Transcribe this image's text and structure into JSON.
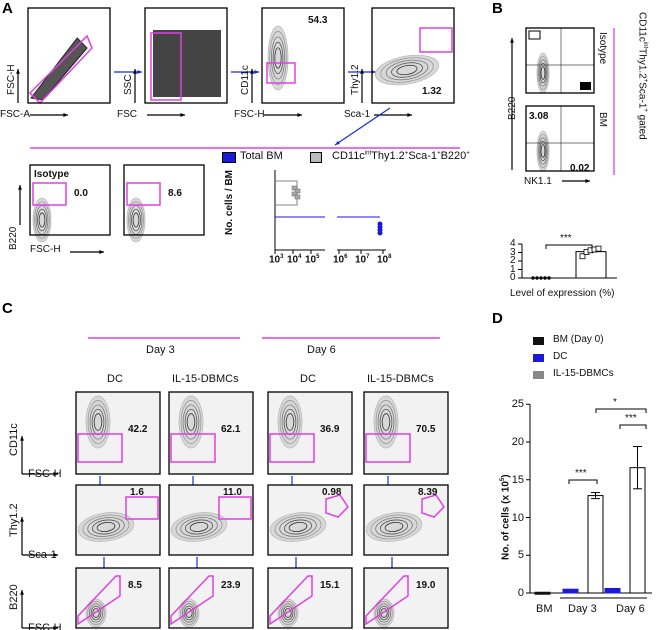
{
  "panels": {
    "A": "A",
    "B": "B",
    "C": "C",
    "D": "D"
  },
  "colors": {
    "gate": "#e040e0",
    "arrow": "#1a2bd6",
    "dc": "#1a1ad6",
    "total_bm": "#1a1ad6",
    "gray": "#999999"
  },
  "panelA": {
    "top_plots": [
      {
        "y": "FSC-H",
        "x": "FSC-A",
        "value": ""
      },
      {
        "y": "SSC",
        "x": "FSC",
        "value": ""
      },
      {
        "y": "CD11c",
        "x": "FSC-H",
        "value": "54.3"
      },
      {
        "y": "Thy1.2",
        "x": "Sca-1",
        "value": "1.32"
      }
    ],
    "bottom_plots": [
      {
        "title": "Isotype",
        "value": "0.0"
      },
      {
        "title": "",
        "value": "8.6"
      }
    ],
    "bottom_ylabel": "B220",
    "bottom_xlabel": "FSC-H",
    "legend": [
      "Total BM",
      "CD11cᴵⁿᵗThy1.2⁺Sca-1⁺B220⁺"
    ],
    "legend_parts": {
      "l1": "Total BM",
      "l2a": "CD11c",
      "l2b": "int",
      "l2c": "Thy1.2",
      "l2d": "+",
      "l2e": "Sca-1",
      "l2f": "+",
      "l2g": "B220",
      "l2h": "+"
    },
    "ylabel": "No. cells / BM",
    "xticks": [
      "10",
      "3",
      "10",
      "4",
      "10",
      "5",
      "10",
      "6",
      "10",
      "7",
      "10",
      "8"
    ]
  },
  "panelB": {
    "plots": [
      {
        "row": "Isotype",
        "tl": "",
        "br": ""
      },
      {
        "row": "BM",
        "tl": "3.08",
        "br": "0.02"
      }
    ],
    "ylabel": "B220",
    "xlabel": "NK1.1",
    "gate_a": "CD11c",
    "gate_b": "int",
    "gate_c": "Thy1.2",
    "gate_d": "+",
    "gate_e": "Sca-1",
    "gate_f": "+",
    "gate_g": " gated",
    "sig": "***"
  },
  "panelC": {
    "days": [
      "Day 3",
      "Day 6"
    ],
    "groups": [
      "DC",
      "IL-15-DBMCs",
      "DC",
      "IL-15-DBMCs"
    ],
    "row_labels": [
      [
        "CD11c",
        "FSC-H"
      ],
      [
        "Thy1.2",
        "Sca-1"
      ],
      [
        "B220",
        "FSC-H"
      ]
    ],
    "values": [
      [
        "42.2",
        "62.1",
        "36.9",
        "70.5"
      ],
      [
        "1.6",
        "11.0",
        "0.98",
        "8.39"
      ],
      [
        "8.5",
        "23.9",
        "15.1",
        "19.0"
      ]
    ]
  },
  "chart_data": [
    {
      "panel": "B",
      "type": "bar",
      "xlabel": "Level of expression (%)",
      "ylim": [
        0,
        4
      ],
      "yticks": [
        "0",
        "1",
        "2",
        "3",
        "4"
      ],
      "categories": [
        "",
        ""
      ],
      "values": [
        0,
        3.1
      ],
      "points": [
        [
          0,
          0,
          0,
          0,
          0
        ],
        [
          2.5,
          3.0,
          3.2,
          3.3,
          3.4
        ]
      ],
      "significance": "***"
    },
    {
      "panel": "A",
      "type": "scatter",
      "ylabel": "No. cells / BM",
      "xscale": "log",
      "xlim": [
        "10^3",
        "10^8"
      ],
      "series": [
        {
          "name": "Total BM",
          "values": [
            60000000.0
          ]
        },
        {
          "name": "CD11c int Thy1.2+Sca-1+B220+",
          "values": [
            10000.0
          ]
        }
      ]
    },
    {
      "panel": "D",
      "type": "bar",
      "ylabel": "No. of cells (x 10⁵)",
      "ylim": [
        0,
        25
      ],
      "yticks": [
        "0",
        "5",
        "10",
        "15",
        "20",
        "25"
      ],
      "categories": [
        "BM",
        "Day 3",
        "Day 6"
      ],
      "series": [
        {
          "name": "BM (Day 0)",
          "values": [
            0.1,
            null,
            null
          ]
        },
        {
          "name": "DC",
          "values": [
            null,
            0.5,
            0.6
          ]
        },
        {
          "name": "IL-15-DBMCs",
          "values": [
            null,
            12.9,
            16.6
          ]
        }
      ],
      "errors": {
        "IL-15-DBMCs": [
          null,
          0.4,
          2.8
        ]
      },
      "significance": [
        "***",
        "***",
        "*"
      ]
    }
  ],
  "panelD": {
    "ylabel_a": "No. of cells (x 10",
    "ylabel_b": "5",
    "ylabel_c": ")",
    "legend": [
      "BM (Day 0)",
      "DC",
      "IL-15-DBMCs"
    ]
  }
}
